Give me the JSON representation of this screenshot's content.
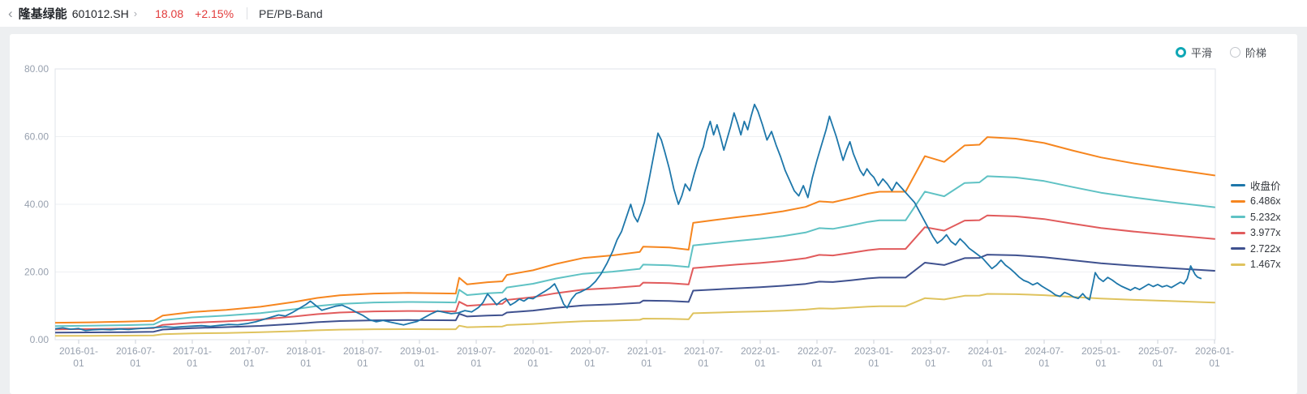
{
  "header": {
    "back_icon": "‹",
    "stock_name": "隆基绿能",
    "stock_code": "601012.SH",
    "forward_icon": "›",
    "price": "18.08",
    "change_pct": "+2.15%",
    "view_title": "PE/PB-Band"
  },
  "controls": {
    "accent_color": "#0fa7b5",
    "options": [
      {
        "label": "平滑",
        "selected": true
      },
      {
        "label": "阶梯",
        "selected": false
      }
    ]
  },
  "legend": {
    "items": [
      {
        "label": "收盘价",
        "color": "#1e77aa"
      },
      {
        "label": "6.486x",
        "color": "#f6861f"
      },
      {
        "label": "5.232x",
        "color": "#5fc2c4"
      },
      {
        "label": "3.977x",
        "color": "#e15b5c"
      },
      {
        "label": "2.722x",
        "color": "#3f518f"
      },
      {
        "label": "1.467x",
        "color": "#dfc35e"
      }
    ]
  },
  "chart_data": {
    "type": "line",
    "title": "PE/PB-Band",
    "grid": true,
    "legend_position": "right",
    "y_axis": {
      "min": 0,
      "max": 80,
      "tick_labels": [
        "0.00",
        "20.00",
        "40.00",
        "60.00",
        "80.00"
      ]
    },
    "x_axis": {
      "tick_dates": [
        "2016-01-01",
        "2016-07-01",
        "2017-01-01",
        "2017-07-01",
        "2018-01-01",
        "2018-07-01",
        "2019-01-01",
        "2019-07-01",
        "2020-01-01",
        "2020-07-01",
        "2021-01-01",
        "2021-07-01",
        "2022-01-01",
        "2022-07-01",
        "2023-01-01",
        "2023-07-01",
        "2024-01-01",
        "2024-07-01",
        "2025-01-01",
        "2025-07-01",
        "2026-01-01"
      ]
    },
    "close_series": {
      "name": "收盘价",
      "color": "#1e77aa",
      "points": [
        [
          2015.79,
          3.2
        ],
        [
          2015.86,
          3.5
        ],
        [
          2015.93,
          3.1
        ],
        [
          2016.0,
          3.3
        ],
        [
          2016.06,
          2.7
        ],
        [
          2016.12,
          2.9
        ],
        [
          2016.2,
          3.05
        ],
        [
          2016.28,
          2.95
        ],
        [
          2016.36,
          3.15
        ],
        [
          2016.44,
          3.05
        ],
        [
          2016.52,
          3.25
        ],
        [
          2016.6,
          3.45
        ],
        [
          2016.68,
          3.6
        ],
        [
          2016.76,
          3.8
        ],
        [
          2016.84,
          3.65
        ],
        [
          2016.92,
          3.85
        ],
        [
          2017.0,
          4.0
        ],
        [
          2017.08,
          4.15
        ],
        [
          2017.16,
          3.95
        ],
        [
          2017.24,
          4.25
        ],
        [
          2017.32,
          4.5
        ],
        [
          2017.4,
          4.4
        ],
        [
          2017.48,
          4.75
        ],
        [
          2017.56,
          5.3
        ],
        [
          2017.64,
          6.1
        ],
        [
          2017.7,
          6.7
        ],
        [
          2017.76,
          7.3
        ],
        [
          2017.82,
          7.0
        ],
        [
          2017.88,
          8.0
        ],
        [
          2017.94,
          9.2
        ],
        [
          2018.0,
          10.4
        ],
        [
          2018.04,
          11.4
        ],
        [
          2018.08,
          10.3
        ],
        [
          2018.14,
          8.7
        ],
        [
          2018.2,
          9.3
        ],
        [
          2018.26,
          9.9
        ],
        [
          2018.32,
          10.2
        ],
        [
          2018.38,
          9.3
        ],
        [
          2018.44,
          8.2
        ],
        [
          2018.5,
          7.2
        ],
        [
          2018.56,
          5.9
        ],
        [
          2018.62,
          5.3
        ],
        [
          2018.68,
          5.7
        ],
        [
          2018.74,
          5.2
        ],
        [
          2018.8,
          4.8
        ],
        [
          2018.86,
          4.35
        ],
        [
          2018.92,
          4.9
        ],
        [
          2018.98,
          5.4
        ],
        [
          2019.04,
          6.5
        ],
        [
          2019.1,
          7.6
        ],
        [
          2019.16,
          8.5
        ],
        [
          2019.22,
          8.1
        ],
        [
          2019.28,
          7.7
        ],
        [
          2019.34,
          7.9
        ],
        [
          2019.4,
          8.6
        ],
        [
          2019.46,
          8.2
        ],
        [
          2019.52,
          9.5
        ],
        [
          2019.56,
          11.0
        ],
        [
          2019.6,
          13.5
        ],
        [
          2019.64,
          12.0
        ],
        [
          2019.68,
          10.3
        ],
        [
          2019.72,
          11.5
        ],
        [
          2019.76,
          12.2
        ],
        [
          2019.8,
          10.2
        ],
        [
          2019.84,
          11.0
        ],
        [
          2019.88,
          12.0
        ],
        [
          2019.92,
          11.4
        ],
        [
          2019.96,
          12.3
        ],
        [
          2020.0,
          12.1
        ],
        [
          2020.05,
          13.2
        ],
        [
          2020.1,
          14.2
        ],
        [
          2020.15,
          15.3
        ],
        [
          2020.19,
          16.5
        ],
        [
          2020.23,
          13.8
        ],
        [
          2020.27,
          10.5
        ],
        [
          2020.3,
          9.4
        ],
        [
          2020.34,
          12.0
        ],
        [
          2020.38,
          13.6
        ],
        [
          2020.42,
          14.1
        ],
        [
          2020.46,
          14.8
        ],
        [
          2020.5,
          15.6
        ],
        [
          2020.55,
          17.2
        ],
        [
          2020.6,
          19.5
        ],
        [
          2020.65,
          22.5
        ],
        [
          2020.7,
          26.0
        ],
        [
          2020.74,
          29.5
        ],
        [
          2020.78,
          32.0
        ],
        [
          2020.82,
          36.0
        ],
        [
          2020.86,
          40.0
        ],
        [
          2020.89,
          36.5
        ],
        [
          2020.92,
          34.8
        ],
        [
          2020.95,
          37.5
        ],
        [
          2020.98,
          40.5
        ],
        [
          2021.02,
          47.0
        ],
        [
          2021.06,
          54.0
        ],
        [
          2021.1,
          61.0
        ],
        [
          2021.13,
          59.0
        ],
        [
          2021.16,
          55.5
        ],
        [
          2021.2,
          50.5
        ],
        [
          2021.24,
          44.5
        ],
        [
          2021.28,
          40.0
        ],
        [
          2021.31,
          42.5
        ],
        [
          2021.34,
          46.0
        ],
        [
          2021.38,
          44.0
        ],
        [
          2021.42,
          49.0
        ],
        [
          2021.46,
          53.5
        ],
        [
          2021.5,
          57.0
        ],
        [
          2021.53,
          61.5
        ],
        [
          2021.56,
          64.5
        ],
        [
          2021.59,
          60.5
        ],
        [
          2021.62,
          63.5
        ],
        [
          2021.65,
          60.0
        ],
        [
          2021.68,
          56.0
        ],
        [
          2021.71,
          59.5
        ],
        [
          2021.74,
          63.0
        ],
        [
          2021.77,
          67.0
        ],
        [
          2021.8,
          64.0
        ],
        [
          2021.83,
          60.5
        ],
        [
          2021.86,
          64.5
        ],
        [
          2021.89,
          62.0
        ],
        [
          2021.92,
          66.0
        ],
        [
          2021.95,
          69.5
        ],
        [
          2021.98,
          67.5
        ],
        [
          2022.02,
          63.5
        ],
        [
          2022.06,
          59.0
        ],
        [
          2022.1,
          61.5
        ],
        [
          2022.14,
          57.5
        ],
        [
          2022.18,
          54.0
        ],
        [
          2022.22,
          50.0
        ],
        [
          2022.26,
          47.0
        ],
        [
          2022.3,
          44.0
        ],
        [
          2022.34,
          42.5
        ],
        [
          2022.38,
          45.5
        ],
        [
          2022.42,
          42.0
        ],
        [
          2022.46,
          48.0
        ],
        [
          2022.5,
          53.0
        ],
        [
          2022.54,
          57.5
        ],
        [
          2022.58,
          62.0
        ],
        [
          2022.61,
          66.0
        ],
        [
          2022.64,
          63.0
        ],
        [
          2022.67,
          60.0
        ],
        [
          2022.7,
          56.5
        ],
        [
          2022.73,
          53.0
        ],
        [
          2022.76,
          56.0
        ],
        [
          2022.79,
          58.5
        ],
        [
          2022.82,
          55.0
        ],
        [
          2022.85,
          52.5
        ],
        [
          2022.88,
          50.0
        ],
        [
          2022.91,
          48.5
        ],
        [
          2022.94,
          50.5
        ],
        [
          2022.97,
          49.0
        ],
        [
          2023.0,
          48.0
        ],
        [
          2023.04,
          45.5
        ],
        [
          2023.08,
          47.5
        ],
        [
          2023.12,
          46.0
        ],
        [
          2023.16,
          44.0
        ],
        [
          2023.2,
          46.5
        ],
        [
          2023.24,
          45.0
        ],
        [
          2023.28,
          43.5
        ],
        [
          2023.32,
          42.0
        ],
        [
          2023.36,
          40.5
        ],
        [
          2023.4,
          38.0
        ],
        [
          2023.44,
          35.5
        ],
        [
          2023.48,
          33.0
        ],
        [
          2023.52,
          30.5
        ],
        [
          2023.56,
          28.5
        ],
        [
          2023.6,
          29.5
        ],
        [
          2023.64,
          31.0
        ],
        [
          2023.68,
          29.0
        ],
        [
          2023.72,
          28.0
        ],
        [
          2023.76,
          29.8
        ],
        [
          2023.8,
          28.5
        ],
        [
          2023.84,
          27.0
        ],
        [
          2023.88,
          26.0
        ],
        [
          2023.92,
          25.0
        ],
        [
          2023.96,
          24.0
        ],
        [
          2024.0,
          22.5
        ],
        [
          2024.04,
          21.0
        ],
        [
          2024.08,
          22.0
        ],
        [
          2024.12,
          23.5
        ],
        [
          2024.16,
          22.0
        ],
        [
          2024.2,
          21.0
        ],
        [
          2024.24,
          19.8
        ],
        [
          2024.28,
          18.5
        ],
        [
          2024.32,
          17.5
        ],
        [
          2024.36,
          17.0
        ],
        [
          2024.4,
          16.2
        ],
        [
          2024.44,
          16.8
        ],
        [
          2024.48,
          15.8
        ],
        [
          2024.52,
          15.0
        ],
        [
          2024.56,
          14.2
        ],
        [
          2024.6,
          13.2
        ],
        [
          2024.64,
          12.8
        ],
        [
          2024.68,
          14.0
        ],
        [
          2024.72,
          13.4
        ],
        [
          2024.76,
          12.6
        ],
        [
          2024.8,
          12.2
        ],
        [
          2024.84,
          13.6
        ],
        [
          2024.87,
          12.4
        ],
        [
          2024.9,
          11.8
        ],
        [
          2024.93,
          16.5
        ],
        [
          2024.95,
          19.8
        ],
        [
          2024.98,
          18.2
        ],
        [
          2025.02,
          17.2
        ],
        [
          2025.06,
          18.4
        ],
        [
          2025.1,
          17.6
        ],
        [
          2025.14,
          16.6
        ],
        [
          2025.18,
          15.8
        ],
        [
          2025.22,
          15.2
        ],
        [
          2025.26,
          14.6
        ],
        [
          2025.3,
          15.4
        ],
        [
          2025.34,
          14.8
        ],
        [
          2025.38,
          15.6
        ],
        [
          2025.42,
          16.4
        ],
        [
          2025.46,
          15.7
        ],
        [
          2025.5,
          16.3
        ],
        [
          2025.54,
          15.6
        ],
        [
          2025.58,
          16.0
        ],
        [
          2025.62,
          15.4
        ],
        [
          2025.66,
          16.2
        ],
        [
          2025.7,
          17.0
        ],
        [
          2025.73,
          16.5
        ],
        [
          2025.76,
          18.0
        ],
        [
          2025.79,
          21.8
        ],
        [
          2025.81,
          20.5
        ],
        [
          2025.83,
          19.2
        ],
        [
          2025.85,
          18.5
        ],
        [
          2025.88,
          18.08
        ]
      ]
    },
    "pb_bands": {
      "multiples": [
        6.486,
        5.232,
        3.977,
        2.722,
        1.467
      ],
      "colors": [
        "#f6861f",
        "#5fc2c4",
        "#e15b5c",
        "#3f518f",
        "#dfc35e"
      ],
      "book_value_points": [
        [
          2015.79,
          0.77
        ],
        [
          2016.1,
          0.79
        ],
        [
          2016.4,
          0.82
        ],
        [
          2016.66,
          0.86
        ],
        [
          2016.74,
          1.1
        ],
        [
          2017.0,
          1.26
        ],
        [
          2017.3,
          1.36
        ],
        [
          2017.6,
          1.5
        ],
        [
          2017.9,
          1.72
        ],
        [
          2018.1,
          1.9
        ],
        [
          2018.3,
          2.02
        ],
        [
          2018.6,
          2.1
        ],
        [
          2018.9,
          2.13
        ],
        [
          2019.2,
          2.11
        ],
        [
          2019.32,
          2.1
        ],
        [
          2019.35,
          2.82
        ],
        [
          2019.42,
          2.52
        ],
        [
          2019.6,
          2.62
        ],
        [
          2019.73,
          2.66
        ],
        [
          2019.77,
          2.95
        ],
        [
          2020.0,
          3.16
        ],
        [
          2020.2,
          3.45
        ],
        [
          2020.44,
          3.72
        ],
        [
          2020.7,
          3.84
        ],
        [
          2020.94,
          4.0
        ],
        [
          2020.97,
          4.24
        ],
        [
          2021.2,
          4.2
        ],
        [
          2021.37,
          4.1
        ],
        [
          2021.41,
          5.32
        ],
        [
          2021.6,
          5.45
        ],
        [
          2021.8,
          5.58
        ],
        [
          2022.0,
          5.7
        ],
        [
          2022.2,
          5.85
        ],
        [
          2022.4,
          6.05
        ],
        [
          2022.52,
          6.3
        ],
        [
          2022.64,
          6.26
        ],
        [
          2022.8,
          6.45
        ],
        [
          2022.95,
          6.65
        ],
        [
          2023.05,
          6.74
        ],
        [
          2023.28,
          6.74
        ],
        [
          2023.45,
          8.36
        ],
        [
          2023.62,
          8.1
        ],
        [
          2023.8,
          8.85
        ],
        [
          2023.93,
          8.88
        ],
        [
          2024.0,
          9.23
        ],
        [
          2024.25,
          9.16
        ],
        [
          2024.5,
          8.96
        ],
        [
          2024.75,
          8.62
        ],
        [
          2025.0,
          8.3
        ],
        [
          2025.3,
          8.02
        ],
        [
          2025.6,
          7.78
        ],
        [
          2026.0,
          7.48
        ]
      ]
    }
  }
}
